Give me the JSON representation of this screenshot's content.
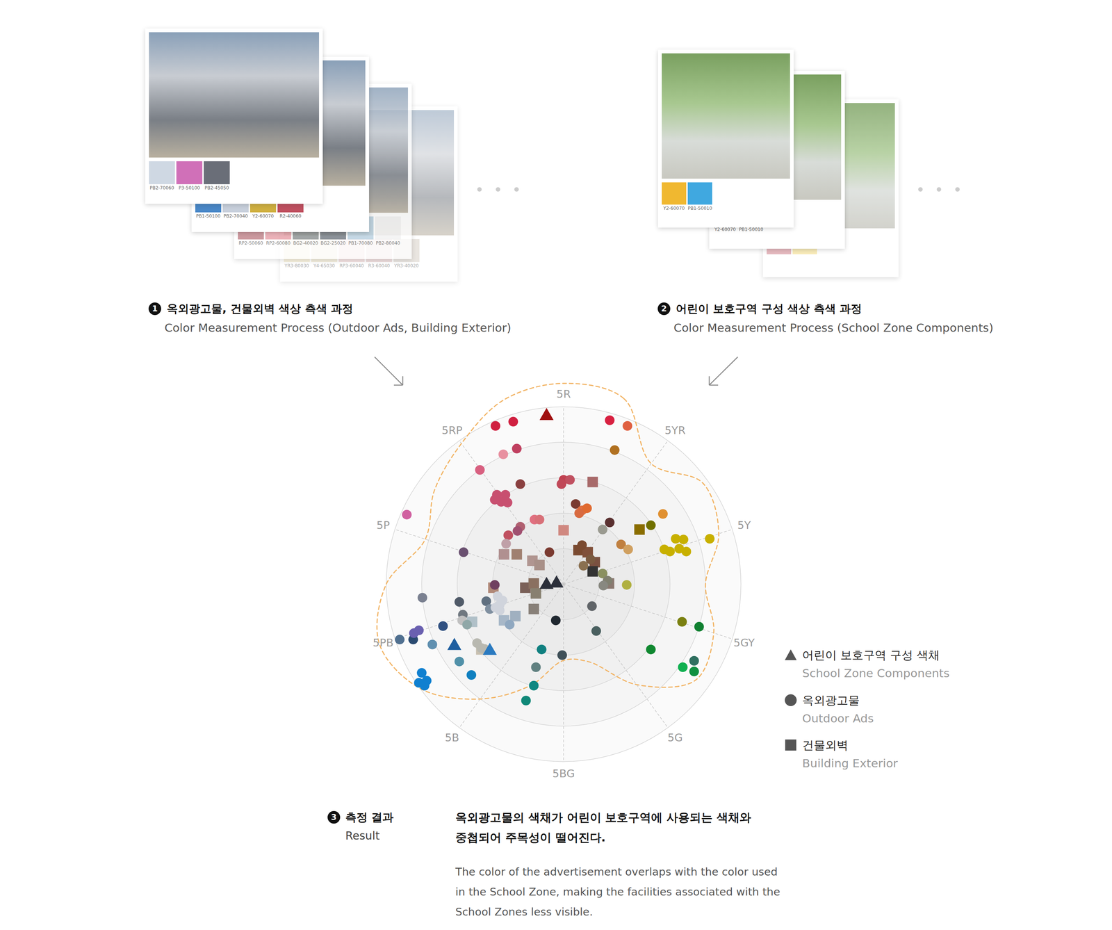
{
  "panels": [
    {
      "number": "1",
      "title": "옥외광고물, 건물외벽 색상 측색 과정",
      "subtitle": "Color Measurement Process (Outdoor Ads, Building Exterior)",
      "cards": [
        {
          "swatches": [
            {
              "color": "#cfd8e3",
              "label": "PB2-70060"
            },
            {
              "color": "#d070b8",
              "label": "P3-50100"
            },
            {
              "color": "#6a6e78",
              "label": "PB2-45050"
            }
          ]
        },
        {
          "swatches": [
            {
              "color": "#4a88c8",
              "label": "PB1-50100"
            },
            {
              "color": "#c8d0dc",
              "label": "PB2-70040"
            },
            {
              "color": "#d0b040",
              "label": "Y2-60070"
            },
            {
              "color": "#c05060",
              "label": "R2-40060"
            }
          ]
        },
        {
          "swatches": [
            {
              "color": "#c08088",
              "label": "RP2-50060"
            },
            {
              "color": "#e8a0a8",
              "label": "RP2-60080"
            },
            {
              "color": "#8a9090",
              "label": "BG2-40020"
            },
            {
              "color": "#707880",
              "label": "BG2-25020"
            },
            {
              "color": "#b8d0e0",
              "label": "PB1-70080"
            },
            {
              "color": "#f2f2f2",
              "label": "PB2-80040"
            }
          ]
        },
        {
          "swatches": [
            {
              "color": "#f0e4c0",
              "label": "YR3-80030"
            },
            {
              "color": "#e8e0c0",
              "label": "Y4-65030"
            },
            {
              "color": "#e8c8c8",
              "label": "RP3-60040"
            },
            {
              "color": "#e0c0c0",
              "label": "R3-60040"
            },
            {
              "color": "#d8d0c8",
              "label": "YR3-40020"
            }
          ]
        }
      ]
    },
    {
      "number": "2",
      "title": "어린이 보호구역 구성 색상 측색 과정",
      "subtitle": "Color Measurement Process (School Zone Components)",
      "cards": [
        {
          "swatches": [
            {
              "color": "#f0b830",
              "label": "Y2-60070"
            },
            {
              "color": "#40a8e0",
              "label": "PB1-50010"
            }
          ]
        },
        {
          "swatches": [
            {
              "color": "#f0c050",
              "label": "Y2-60070"
            },
            {
              "color": "#50b0e0",
              "label": "PB1-50010"
            }
          ]
        },
        {
          "swatches": [
            {
              "color": "#e0a8b0"
            },
            {
              "color": "#f8e8a8"
            }
          ]
        }
      ]
    }
  ],
  "chart_data": {
    "type": "polar_scatter",
    "hue_categories": [
      "5R",
      "5YR",
      "5Y",
      "5GY",
      "5G",
      "5BG",
      "5B",
      "5PB",
      "5P",
      "5RP"
    ],
    "xlim": [
      -6.2,
      6.2
    ],
    "ylim": [
      -6.2,
      6.2
    ],
    "rlim": [
      0,
      5
    ],
    "rings": [
      1,
      2,
      3,
      4,
      5
    ],
    "tick_labels": false,
    "grid": true,
    "legend": "right",
    "boundary": {
      "color": "#f2b465",
      "line_style": "dashed",
      "r": [
        5.66,
        5.5,
        4.2,
        4.85,
        4.6,
        4.0,
        4.45,
        4.6,
        3.5,
        2.3,
        2.15,
        3.0,
        4.0,
        5.0,
        5.46,
        5.0,
        4.1,
        4.5,
        4.9,
        5.46
      ]
    },
    "series": [
      {
        "name": "어린이 보호구역 구성 색채",
        "name_en": "School Zone Components",
        "marker": "triangle",
        "points": [
          {
            "x": -0.48,
            "y": 4.74,
            "color": "#a01010"
          },
          {
            "x": -3.08,
            "y": -1.74,
            "color": "#1f5fa0"
          },
          {
            "x": -2.08,
            "y": -1.88,
            "color": "#2a7ac0"
          },
          {
            "x": -0.48,
            "y": -0.02,
            "color": "#2b2f3a"
          },
          {
            "x": -0.2,
            "y": 0.02,
            "color": "#2b2f3a"
          }
        ]
      },
      {
        "name": "옥외광고물",
        "name_en": "Outdoor Ads",
        "marker": "circle",
        "points": [
          {
            "x": -1.92,
            "y": 4.46,
            "color": "#d02040"
          },
          {
            "x": -1.42,
            "y": 4.58,
            "color": "#d02040"
          },
          {
            "x": 1.3,
            "y": 4.62,
            "color": "#d82040"
          },
          {
            "x": 1.8,
            "y": 4.46,
            "color": "#e06040"
          },
          {
            "x": 1.44,
            "y": 3.78,
            "color": "#b07020"
          },
          {
            "x": -1.32,
            "y": 3.82,
            "color": "#c04060"
          },
          {
            "x": -1.7,
            "y": 3.66,
            "color": "#e890a0"
          },
          {
            "x": -2.36,
            "y": 3.22,
            "color": "#d86080"
          },
          {
            "x": -1.22,
            "y": 2.82,
            "color": "#8a4040"
          },
          {
            "x": 0,
            "y": 2.94,
            "color": "#c04050"
          },
          {
            "x": 0.18,
            "y": 2.94,
            "color": "#c05060"
          },
          {
            "x": -0.06,
            "y": 2.82,
            "color": "#c04858"
          },
          {
            "x": -1.88,
            "y": 2.52,
            "color": "#c85070"
          },
          {
            "x": -1.64,
            "y": 2.52,
            "color": "#c85070"
          },
          {
            "x": -1.76,
            "y": 2.32,
            "color": "#c85070"
          },
          {
            "x": -1.94,
            "y": 2.38,
            "color": "#c85070"
          },
          {
            "x": -1.58,
            "y": 2.3,
            "color": "#c85070"
          },
          {
            "x": 0.34,
            "y": 2.26,
            "color": "#7a3a30"
          },
          {
            "x": 0.52,
            "y": 2.08,
            "color": "#e07040"
          },
          {
            "x": 0.66,
            "y": 2.14,
            "color": "#e06a30"
          },
          {
            "x": 0.44,
            "y": 2.0,
            "color": "#d86a40"
          },
          {
            "x": 1.3,
            "y": 1.74,
            "color": "#5a3030"
          },
          {
            "x": 1.1,
            "y": 1.54,
            "color": "#9a9a90"
          },
          {
            "x": 2.8,
            "y": 1.98,
            "color": "#e09030"
          },
          {
            "x": -0.82,
            "y": 1.82,
            "color": "#e07080"
          },
          {
            "x": -0.68,
            "y": 1.82,
            "color": "#d87078"
          },
          {
            "x": -1.22,
            "y": 1.62,
            "color": "#b06070"
          },
          {
            "x": -1.3,
            "y": 1.5,
            "color": "#a05070"
          },
          {
            "x": -1.56,
            "y": 1.38,
            "color": "#c05060"
          },
          {
            "x": -1.62,
            "y": 1.14,
            "color": "#c0a0a8"
          },
          {
            "x": -0.4,
            "y": 0.9,
            "color": "#7a3a30"
          },
          {
            "x": -2.82,
            "y": 0.9,
            "color": "#6a5070"
          },
          {
            "x": -4.42,
            "y": 1.96,
            "color": "#d060a0"
          },
          {
            "x": 1.62,
            "y": 1.12,
            "color": "#c08040"
          },
          {
            "x": 1.82,
            "y": 0.98,
            "color": "#d0a060"
          },
          {
            "x": 2.46,
            "y": 1.66,
            "color": "#707000"
          },
          {
            "x": 3.16,
            "y": 1.28,
            "color": "#c8b000"
          },
          {
            "x": 3.38,
            "y": 1.26,
            "color": "#c8b000"
          },
          {
            "x": 2.84,
            "y": 0.98,
            "color": "#c8b000"
          },
          {
            "x": 3.0,
            "y": 0.92,
            "color": "#c8b000"
          },
          {
            "x": 3.26,
            "y": 1.0,
            "color": "#c8b000"
          },
          {
            "x": 3.46,
            "y": 0.92,
            "color": "#c8b000"
          },
          {
            "x": 4.12,
            "y": 1.28,
            "color": "#c8b000"
          },
          {
            "x": 0.52,
            "y": 1.1,
            "color": "#7a4a30"
          },
          {
            "x": 0.56,
            "y": 0.52,
            "color": "#8a7050"
          },
          {
            "x": 0.76,
            "y": 0.7,
            "color": "#7a5a40"
          },
          {
            "x": 1.1,
            "y": 0.3,
            "color": "#8a9060"
          },
          {
            "x": 1.24,
            "y": 0.1,
            "color": "#808070"
          },
          {
            "x": 1.12,
            "y": -0.04,
            "color": "#888880"
          },
          {
            "x": 1.78,
            "y": -0.02,
            "color": "#b0b040"
          },
          {
            "x": 0.8,
            "y": -0.62,
            "color": "#606468"
          },
          {
            "x": 0.92,
            "y": -1.32,
            "color": "#4a6060"
          },
          {
            "x": -0.22,
            "y": -1.02,
            "color": "#202830"
          },
          {
            "x": 3.34,
            "y": -1.06,
            "color": "#7a8010"
          },
          {
            "x": 3.82,
            "y": -1.2,
            "color": "#108030"
          },
          {
            "x": 2.46,
            "y": -1.84,
            "color": "#108830"
          },
          {
            "x": 3.68,
            "y": -2.16,
            "color": "#307060"
          },
          {
            "x": 3.68,
            "y": -2.46,
            "color": "#109040"
          },
          {
            "x": 3.36,
            "y": -2.34,
            "color": "#10b050"
          },
          {
            "x": -0.62,
            "y": -1.84,
            "color": "#108080"
          },
          {
            "x": -0.04,
            "y": -2.0,
            "color": "#405058"
          },
          {
            "x": -0.78,
            "y": -2.34,
            "color": "#608080"
          },
          {
            "x": -0.84,
            "y": -2.86,
            "color": "#108880"
          },
          {
            "x": -1.06,
            "y": -3.28,
            "color": "#108878"
          },
          {
            "x": -2.6,
            "y": -2.56,
            "color": "#1080c0"
          },
          {
            "x": -2.94,
            "y": -2.18,
            "color": "#5090a8"
          },
          {
            "x": -4.0,
            "y": -2.5,
            "color": "#1080d0"
          },
          {
            "x": -3.86,
            "y": -2.72,
            "color": "#1080d0"
          },
          {
            "x": -4.08,
            "y": -2.78,
            "color": "#1080d0"
          },
          {
            "x": -3.92,
            "y": -2.86,
            "color": "#1080d0"
          },
          {
            "x": -3.7,
            "y": -1.7,
            "color": "#6090b0"
          },
          {
            "x": -4.62,
            "y": -1.56,
            "color": "#507090"
          },
          {
            "x": -4.24,
            "y": -1.56,
            "color": "#2a4a70"
          },
          {
            "x": -4.22,
            "y": -1.38,
            "color": "#6a60b0"
          },
          {
            "x": -4.08,
            "y": -1.3,
            "color": "#6a60b0"
          },
          {
            "x": -3.4,
            "y": -1.18,
            "color": "#305080"
          },
          {
            "x": -3.98,
            "y": -0.38,
            "color": "#7a8090"
          },
          {
            "x": -2.94,
            "y": -0.5,
            "color": "#505a68"
          },
          {
            "x": -2.84,
            "y": -0.86,
            "color": "#707880"
          },
          {
            "x": -2.86,
            "y": -1.02,
            "color": "#c0c0c0"
          },
          {
            "x": -2.72,
            "y": -1.14,
            "color": "#90a8a8"
          },
          {
            "x": -2.44,
            "y": -1.66,
            "color": "#b8b8b0"
          },
          {
            "x": -2.32,
            "y": -1.8,
            "color": "#b8b8b0"
          },
          {
            "x": -2.2,
            "y": -1.84,
            "color": "#b8b8b0"
          },
          {
            "x": -2.18,
            "y": -0.48,
            "color": "#607080"
          },
          {
            "x": -1.94,
            "y": -0.02,
            "color": "#704060"
          },
          {
            "x": -2.08,
            "y": -0.7,
            "color": "#8090a0"
          },
          {
            "x": -1.86,
            "y": -0.34,
            "color": "#d0d4dc"
          },
          {
            "x": -1.8,
            "y": -0.58,
            "color": "#d0d4dc"
          },
          {
            "x": -1.72,
            "y": -0.46,
            "color": "#d0d4dc"
          },
          {
            "x": -1.92,
            "y": -0.66,
            "color": "#d0d4dc"
          },
          {
            "x": -1.8,
            "y": -0.74,
            "color": "#d0d4dc"
          },
          {
            "x": -1.52,
            "y": -1.14,
            "color": "#90a8c0"
          }
        ]
      },
      {
        "name": "건물외벽",
        "name_en": "Building Exterior",
        "marker": "square",
        "points": [
          {
            "x": 0.82,
            "y": 2.88,
            "color": "#a86a6a"
          },
          {
            "x": 0,
            "y": 1.52,
            "color": "#d08880"
          },
          {
            "x": 2.14,
            "y": 1.54,
            "color": "#8a6d00"
          },
          {
            "x": -1.68,
            "y": 0.84,
            "color": "#b09090"
          },
          {
            "x": -1.32,
            "y": 0.84,
            "color": "#a08070"
          },
          {
            "x": -0.88,
            "y": 0.66,
            "color": "#b09590"
          },
          {
            "x": -0.68,
            "y": 0.54,
            "color": "#a89088"
          },
          {
            "x": 0.42,
            "y": 0.96,
            "color": "#7a4a30"
          },
          {
            "x": 0.68,
            "y": 0.9,
            "color": "#80503a"
          },
          {
            "x": 0.88,
            "y": 0.62,
            "color": "#7a5040"
          },
          {
            "x": 0.82,
            "y": 0.36,
            "color": "#333333"
          },
          {
            "x": 1.28,
            "y": 0.02,
            "color": "#8a7870"
          },
          {
            "x": -1.98,
            "y": -0.1,
            "color": "#b08878"
          },
          {
            "x": -1.08,
            "y": -0.1,
            "color": "#7a6058"
          },
          {
            "x": -0.84,
            "y": 0.02,
            "color": "#8a7060"
          },
          {
            "x": -0.78,
            "y": -0.26,
            "color": "#888070"
          },
          {
            "x": -0.84,
            "y": -0.7,
            "color": "#888078"
          },
          {
            "x": -1.68,
            "y": -1.02,
            "color": "#a8b8c8"
          },
          {
            "x": -1.36,
            "y": -0.9,
            "color": "#a0b0c0"
          },
          {
            "x": -2.58,
            "y": -1.06,
            "color": "#b0c0c8"
          },
          {
            "x": -2.32,
            "y": -1.84,
            "color": "#c8c0b0"
          }
        ]
      }
    ]
  },
  "result": {
    "number": "3",
    "title": "측정 결과",
    "title_en": "Result",
    "headline": "옥외광고물의 색채가 어린이 보호구역에 사용되는 색채와 중첩되어 주목성이 떨어진다.",
    "body": "The color of the advertisement overlaps with the color used in the School Zone, making the facilities associated with the School Zones less visible."
  }
}
